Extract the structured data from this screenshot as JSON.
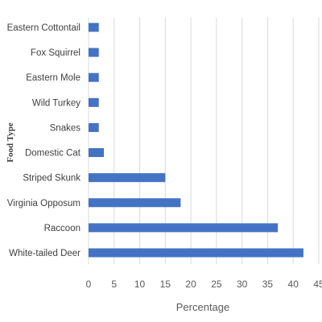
{
  "chart_data": {
    "type": "bar",
    "orientation": "horizontal",
    "categories": [
      "Eastern Cottontail",
      "Fox Squirrel",
      "Eastern Mole",
      "Wild Turkey",
      "Snakes",
      "Domestic Cat",
      "Striped Skunk",
      "Virginia Opposum",
      "Raccoon",
      "White-tailed Deer"
    ],
    "values": [
      2,
      2,
      2,
      2,
      2,
      3,
      15,
      18,
      37,
      42
    ],
    "xlabel": "Percentage",
    "ylabel": "Food Type",
    "xlim": [
      0,
      45
    ],
    "xticks": [
      "0",
      "5",
      "10",
      "15",
      "20",
      "25",
      "30",
      "35",
      "40",
      "45"
    ],
    "grid": "vertical",
    "bar_color": "#4472C4",
    "grid_color": "#d9d9d9"
  }
}
